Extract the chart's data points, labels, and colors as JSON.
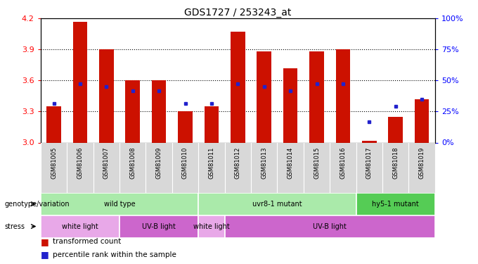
{
  "title": "GDS1727 / 253243_at",
  "samples": [
    "GSM81005",
    "GSM81006",
    "GSM81007",
    "GSM81008",
    "GSM81009",
    "GSM81010",
    "GSM81011",
    "GSM81012",
    "GSM81013",
    "GSM81014",
    "GSM81015",
    "GSM81016",
    "GSM81017",
    "GSM81018",
    "GSM81019"
  ],
  "red_values": [
    3.35,
    4.17,
    3.9,
    3.6,
    3.6,
    3.3,
    3.35,
    4.07,
    3.88,
    3.72,
    3.88,
    3.9,
    3.02,
    3.25,
    3.42
  ],
  "blue_values": [
    3.38,
    3.57,
    3.54,
    3.5,
    3.5,
    3.38,
    3.38,
    3.57,
    3.54,
    3.5,
    3.57,
    3.57,
    3.2,
    3.35,
    3.42
  ],
  "ymin": 3.0,
  "ymax": 4.2,
  "yticks": [
    3.0,
    3.3,
    3.6,
    3.9,
    4.2
  ],
  "right_yticks": [
    0,
    25,
    50,
    75,
    100
  ],
  "right_ytick_labels": [
    "0%",
    "25%",
    "50%",
    "75%",
    "100%"
  ],
  "genotype_groups": [
    {
      "label": "wild type",
      "start": 0,
      "end": 6,
      "color": "#aaeaaa"
    },
    {
      "label": "uvr8-1 mutant",
      "start": 6,
      "end": 12,
      "color": "#aaeaaa"
    },
    {
      "label": "hy5-1 mutant",
      "start": 12,
      "end": 15,
      "color": "#55cc55"
    }
  ],
  "stress_groups": [
    {
      "label": "white light",
      "start": 0,
      "end": 3,
      "color": "#e8a8e8"
    },
    {
      "label": "UV-B light",
      "start": 3,
      "end": 6,
      "color": "#cc66cc"
    },
    {
      "label": "white light",
      "start": 6,
      "end": 7,
      "color": "#e8a8e8"
    },
    {
      "label": "UV-B light",
      "start": 7,
      "end": 15,
      "color": "#cc66cc"
    }
  ],
  "bar_color": "#cc1100",
  "dot_color": "#2222cc",
  "bg_color": "#d8d8d8",
  "legend_red": "transformed count",
  "legend_blue": "percentile rank within the sample",
  "grid_lines": [
    3.3,
    3.6,
    3.9
  ]
}
